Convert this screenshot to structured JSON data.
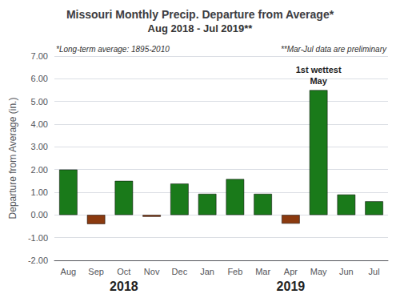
{
  "chart_data": {
    "type": "bar",
    "title": "Missouri Monthly Precip. Departure from Average*",
    "subtitle": "Aug 2018 - Jul 2019**",
    "categories": [
      "Aug",
      "Sep",
      "Oct",
      "Nov",
      "Dec",
      "Jan",
      "Feb",
      "Mar",
      "Apr",
      "May",
      "Jun",
      "Jul"
    ],
    "values": [
      2.0,
      -0.4,
      1.5,
      -0.08,
      1.38,
      0.93,
      1.58,
      0.93,
      -0.38,
      5.5,
      0.9,
      0.6
    ],
    "colors": [
      "#1a7a1a",
      "#8b3a0f",
      "#1a7a1a",
      "#8b3a0f",
      "#1a7a1a",
      "#1a7a1a",
      "#1a7a1a",
      "#1a7a1a",
      "#8b3a0f",
      "#1a7a1a",
      "#1a7a1a",
      "#1a7a1a"
    ],
    "ylabel": "Departure from Average (in.)",
    "ylim": [
      -2.0,
      7.0
    ],
    "yticks": [
      {
        "value": -2.0,
        "label": "-2.00"
      },
      {
        "value": -1.0,
        "label": "-1.00"
      },
      {
        "value": 0.0,
        "label": "0.00"
      },
      {
        "value": 1.0,
        "label": "1.00"
      },
      {
        "value": 2.0,
        "label": "2.00"
      },
      {
        "value": 3.0,
        "label": "3.00"
      },
      {
        "value": 4.0,
        "label": "4.00"
      },
      {
        "value": 5.0,
        "label": "5.00"
      },
      {
        "value": 6.0,
        "label": "6.00"
      },
      {
        "value": 7.0,
        "label": "7.00"
      }
    ],
    "grid": true,
    "footnotes": [
      "*Long-term average: 1895-2010",
      "**Mar-Jul data are preliminary"
    ],
    "annotations": [
      {
        "category": "May",
        "text": "May"
      },
      {
        "category": "May",
        "text": "1st wettest"
      }
    ],
    "x_groups": [
      {
        "label": "2018",
        "categories": [
          "Aug",
          "Sep",
          "Oct",
          "Nov",
          "Dec"
        ]
      },
      {
        "label": "2019",
        "categories": [
          "Jan",
          "Feb",
          "Mar",
          "Apr",
          "May",
          "Jun",
          "Jul"
        ]
      }
    ]
  }
}
